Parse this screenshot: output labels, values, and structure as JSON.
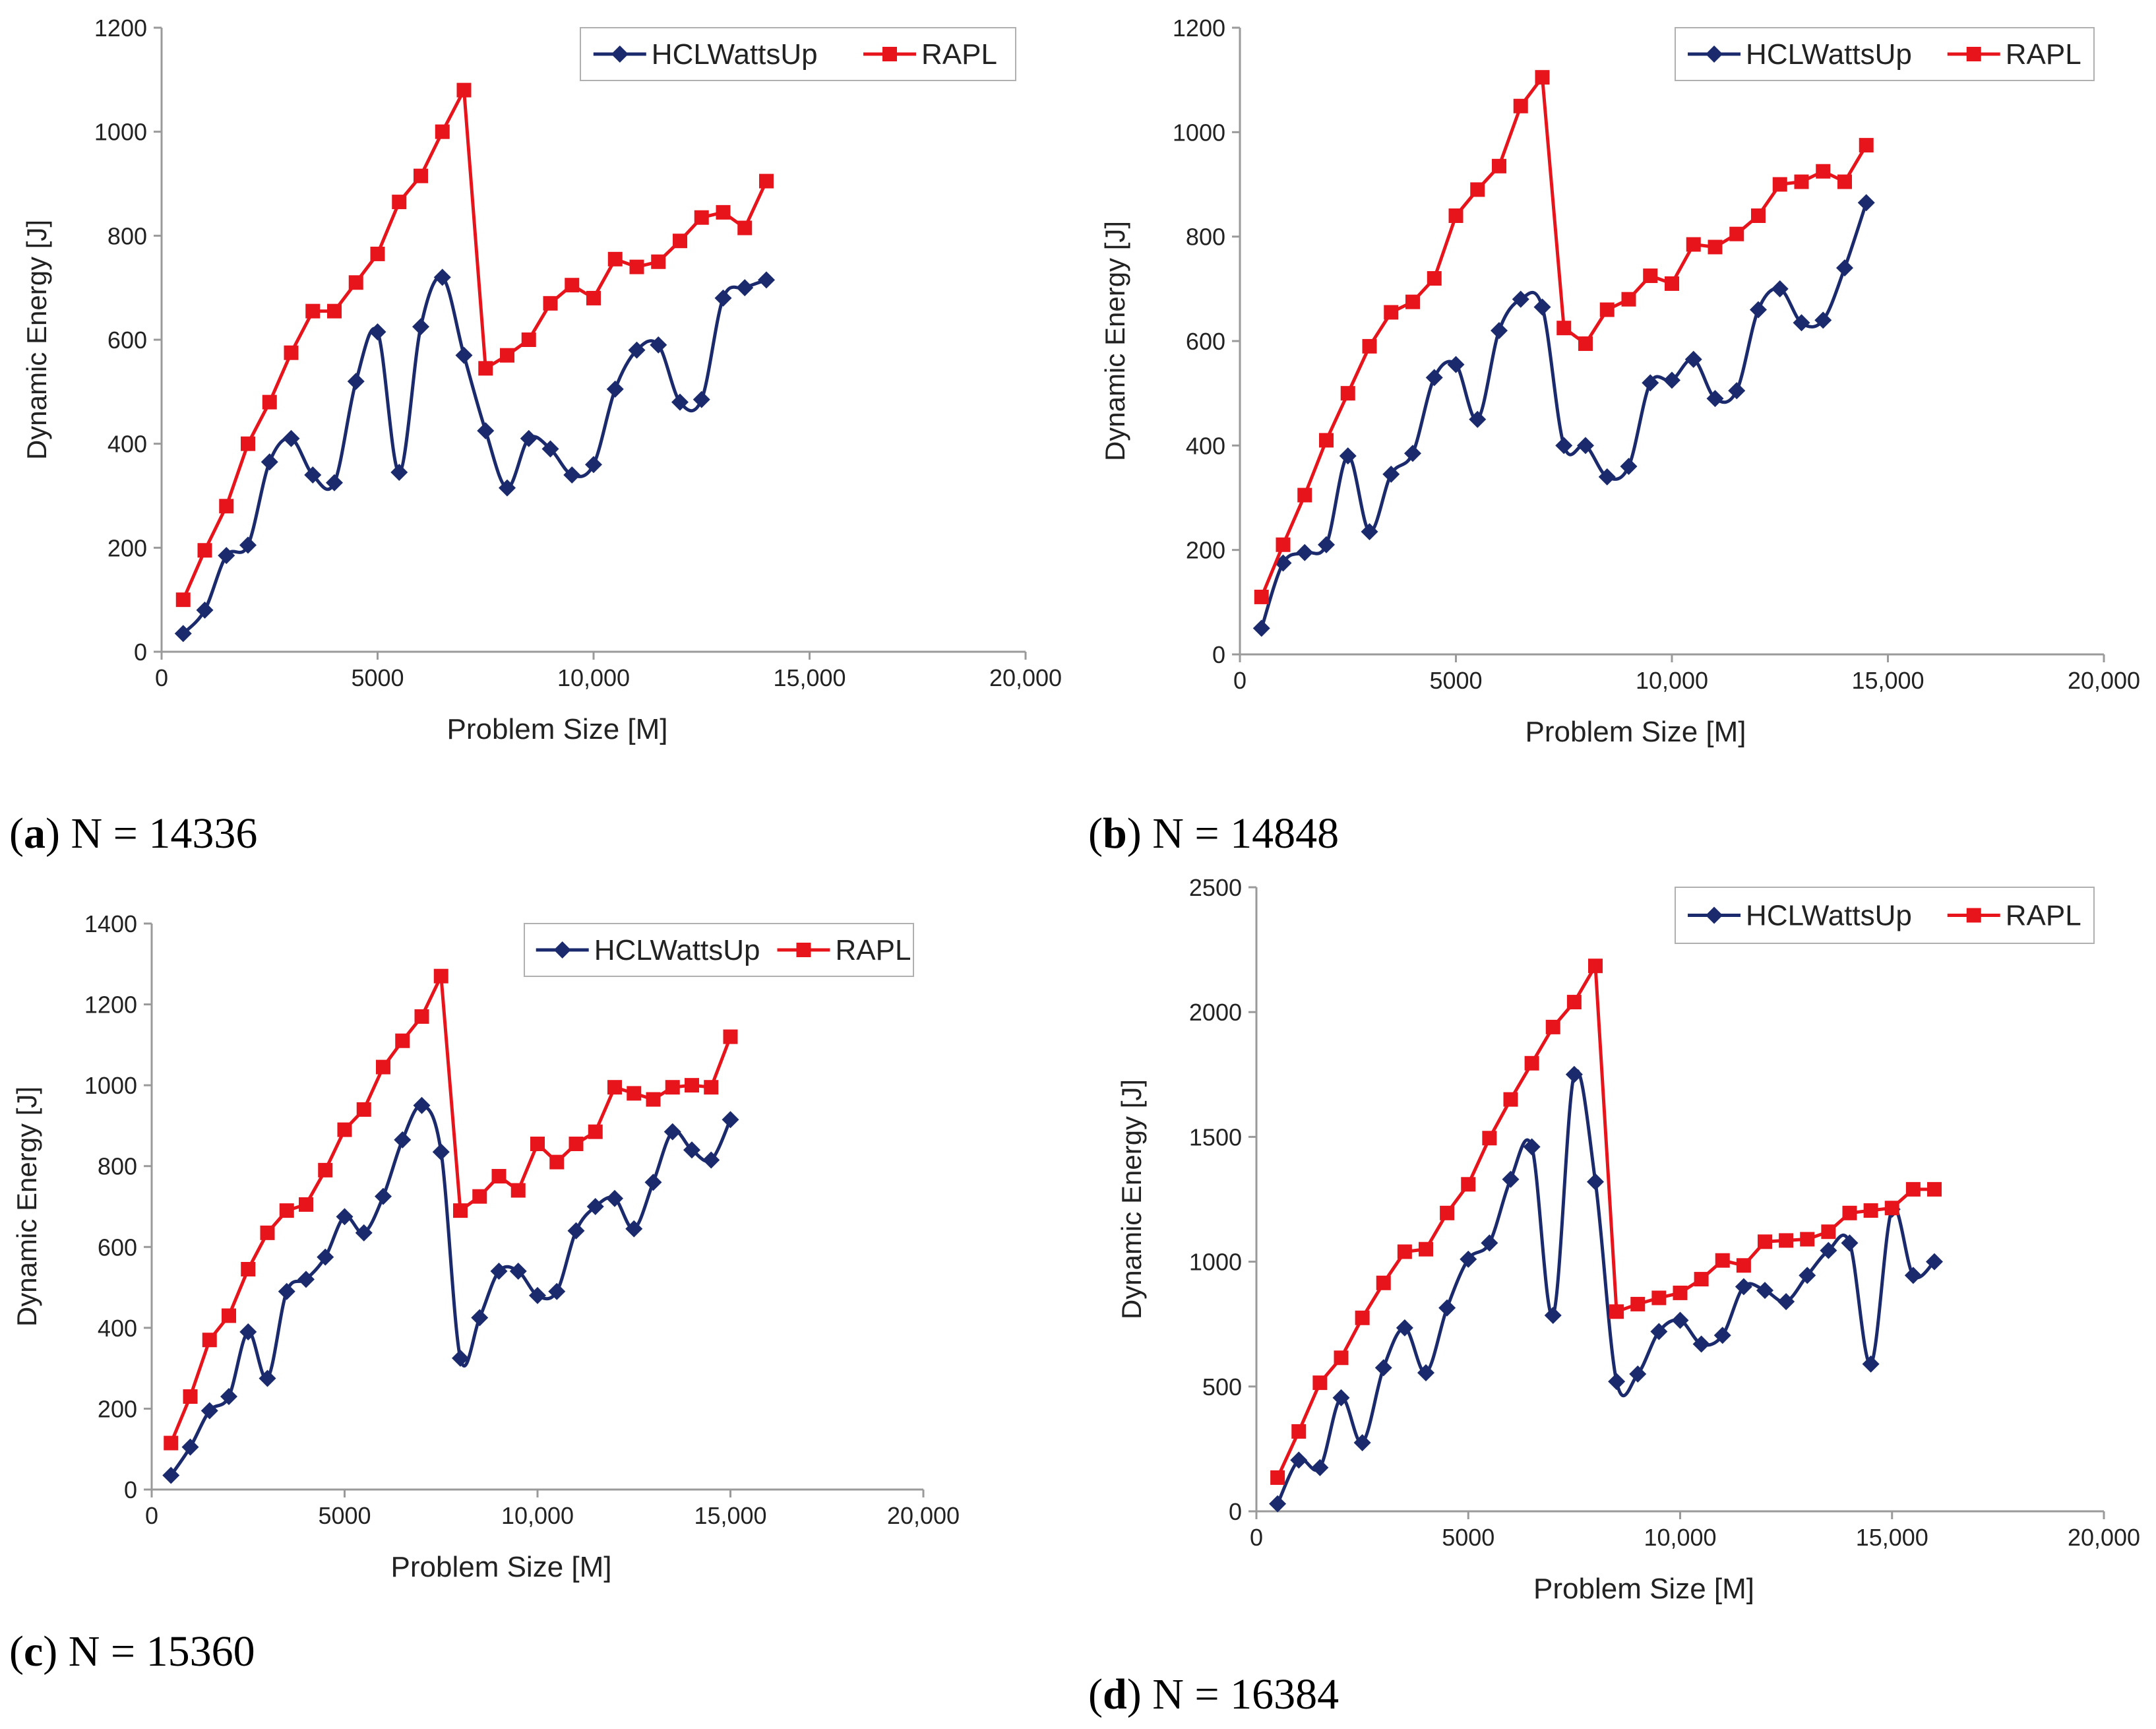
{
  "colors": {
    "hcl": "#1a2a6c",
    "rapl": "#e8141c",
    "axis": "#9a9a9a"
  },
  "legend_icons": {
    "hcl": "diamond-marker",
    "rapl": "square-marker"
  },
  "chart_data": [
    {
      "type": "line",
      "caption_letter": "a",
      "caption_text": " N = 14336",
      "xlabel": "Problem Size [M]",
      "ylabel": "Dynamic Energy [J]",
      "xlim": [
        0,
        20000
      ],
      "ylim": [
        0,
        1200
      ],
      "xticks": [
        0,
        5000,
        10000,
        15000,
        20000
      ],
      "xtick_labels": [
        "0",
        "5000",
        "10,000",
        "15,000",
        "20,000"
      ],
      "yticks": [
        0,
        200,
        400,
        600,
        800,
        1000,
        1200
      ],
      "ytick_labels": [
        "0",
        "200",
        "400",
        "600",
        "800",
        "1000",
        "1200"
      ],
      "legend": "top-right",
      "grid": false,
      "series": [
        {
          "name": "HCLWattsUp",
          "marker": "diamond",
          "smooth": true,
          "x": [
            500,
            1000,
            1500,
            2000,
            2500,
            3000,
            3500,
            4000,
            4500,
            5000,
            5500,
            6000,
            6500,
            7000,
            7500,
            8000,
            8500,
            9000,
            9500,
            10000,
            10500,
            11000,
            11500,
            12000,
            12500,
            13000,
            13500,
            14000
          ],
          "y": [
            35,
            80,
            185,
            205,
            365,
            410,
            340,
            325,
            520,
            615,
            345,
            625,
            720,
            570,
            425,
            315,
            410,
            390,
            340,
            360,
            505,
            580,
            590,
            480,
            485,
            680,
            700,
            715
          ]
        },
        {
          "name": "RAPL",
          "marker": "square",
          "smooth": false,
          "x": [
            500,
            1000,
            1500,
            2000,
            2500,
            3000,
            3500,
            4000,
            4500,
            5000,
            5500,
            6000,
            6500,
            7000,
            7500,
            8000,
            8500,
            9000,
            9500,
            10000,
            10500,
            11000,
            11500,
            12000,
            12500,
            13000,
            13500,
            14000
          ],
          "y": [
            100,
            195,
            280,
            400,
            480,
            575,
            655,
            655,
            710,
            765,
            865,
            915,
            1000,
            1080,
            545,
            570,
            600,
            670,
            705,
            680,
            755,
            740,
            750,
            790,
            835,
            845,
            815,
            905
          ]
        }
      ]
    },
    {
      "type": "line",
      "caption_letter": "b",
      "caption_text": " N = 14848",
      "xlabel": "Problem Size [M]",
      "ylabel": "Dynamic Energy [J]",
      "xlim": [
        0,
        20000
      ],
      "ylim": [
        0,
        1200
      ],
      "xticks": [
        0,
        5000,
        10000,
        15000,
        20000
      ],
      "xtick_labels": [
        "0",
        "5000",
        "10,000",
        "15,000",
        "20,000"
      ],
      "yticks": [
        0,
        200,
        400,
        600,
        800,
        1000,
        1200
      ],
      "ytick_labels": [
        "0",
        "200",
        "400",
        "600",
        "800",
        "1000",
        "1200"
      ],
      "legend": "top-right",
      "grid": false,
      "series": [
        {
          "name": "HCLWattsUp",
          "marker": "diamond",
          "smooth": true,
          "x": [
            500,
            1000,
            1500,
            2000,
            2500,
            3000,
            3500,
            4000,
            4500,
            5000,
            5500,
            6000,
            6500,
            7000,
            7500,
            8000,
            8500,
            9000,
            9500,
            10000,
            10500,
            11000,
            11500,
            12000,
            12500,
            13000,
            13500,
            14000,
            14500
          ],
          "y": [
            50,
            175,
            195,
            210,
            380,
            235,
            345,
            385,
            530,
            555,
            450,
            620,
            680,
            665,
            400,
            400,
            340,
            360,
            520,
            525,
            565,
            490,
            505,
            660,
            700,
            635,
            640,
            740,
            865
          ]
        },
        {
          "name": "RAPL",
          "marker": "square",
          "smooth": false,
          "x": [
            500,
            1000,
            1500,
            2000,
            2500,
            3000,
            3500,
            4000,
            4500,
            5000,
            5500,
            6000,
            6500,
            7000,
            7500,
            8000,
            8500,
            9000,
            9500,
            10000,
            10500,
            11000,
            11500,
            12000,
            12500,
            13000,
            13500,
            14000,
            14500
          ],
          "y": [
            110,
            210,
            305,
            410,
            500,
            590,
            655,
            675,
            720,
            840,
            890,
            935,
            1050,
            1105,
            625,
            595,
            660,
            680,
            725,
            710,
            785,
            780,
            805,
            840,
            900,
            905,
            925,
            905,
            975
          ]
        }
      ]
    },
    {
      "type": "line",
      "caption_letter": "c",
      "caption_text": " N = 15360",
      "xlabel": "Problem Size [M]",
      "ylabel": "Dynamic Energy [J]",
      "xlim": [
        0,
        20000
      ],
      "ylim": [
        0,
        1400
      ],
      "xticks": [
        0,
        5000,
        10000,
        15000,
        20000
      ],
      "xtick_labels": [
        "0",
        "5000",
        "10,000",
        "15,000",
        "20,000"
      ],
      "yticks": [
        0,
        200,
        400,
        600,
        800,
        1000,
        1200,
        1400
      ],
      "ytick_labels": [
        "0",
        "200",
        "400",
        "600",
        "800",
        "1000",
        "1200",
        "1400"
      ],
      "legend": "top-right",
      "grid": false,
      "series": [
        {
          "name": "HCLWattsUp",
          "marker": "diamond",
          "smooth": true,
          "x": [
            500,
            1000,
            1500,
            2000,
            2500,
            3000,
            3500,
            4000,
            4500,
            5000,
            5500,
            6000,
            6500,
            7000,
            7500,
            8000,
            8500,
            9000,
            9500,
            10000,
            10500,
            11000,
            11500,
            12000,
            12500,
            13000,
            13500,
            14000,
            14500,
            15000
          ],
          "y": [
            35,
            105,
            195,
            230,
            390,
            275,
            490,
            520,
            575,
            675,
            635,
            725,
            865,
            950,
            835,
            325,
            425,
            540,
            540,
            480,
            490,
            640,
            700,
            720,
            645,
            760,
            885,
            840,
            815,
            915
          ]
        },
        {
          "name": "RAPL",
          "marker": "square",
          "smooth": false,
          "x": [
            500,
            1000,
            1500,
            2000,
            2500,
            3000,
            3500,
            4000,
            4500,
            5000,
            5500,
            6000,
            6500,
            7000,
            7500,
            8000,
            8500,
            9000,
            9500,
            10000,
            10500,
            11000,
            11500,
            12000,
            12500,
            13000,
            13500,
            14000,
            14500,
            15000
          ],
          "y": [
            115,
            230,
            370,
            430,
            545,
            635,
            690,
            705,
            790,
            890,
            940,
            1045,
            1110,
            1170,
            1270,
            690,
            725,
            775,
            740,
            855,
            810,
            855,
            885,
            995,
            980,
            965,
            995,
            1000,
            995,
            1120
          ]
        }
      ]
    },
    {
      "type": "line",
      "caption_letter": "d",
      "caption_text": " N = 16384",
      "xlabel": "Problem Size [M]",
      "ylabel": "Dynamic Energy [J]",
      "xlim": [
        0,
        20000
      ],
      "ylim": [
        0,
        2500
      ],
      "xticks": [
        0,
        5000,
        10000,
        15000,
        20000
      ],
      "xtick_labels": [
        "0",
        "5000",
        "10,000",
        "15,000",
        "20,000"
      ],
      "yticks": [
        0,
        500,
        1000,
        1500,
        2000,
        2500
      ],
      "ytick_labels": [
        "0",
        "500",
        "1000",
        "1500",
        "2000",
        "2500"
      ],
      "legend": "top-right",
      "grid": false,
      "series": [
        {
          "name": "HCLWattsUp",
          "marker": "diamond",
          "smooth": true,
          "x": [
            500,
            1000,
            1500,
            2000,
            2500,
            3000,
            3500,
            4000,
            4500,
            5000,
            5500,
            6000,
            6500,
            7000,
            7500,
            8000,
            8500,
            9000,
            9500,
            10000,
            10500,
            11000,
            11500,
            12000,
            12500,
            13000,
            13500,
            14000,
            14500,
            15000,
            15500,
            16000
          ],
          "y": [
            30,
            205,
            175,
            455,
            275,
            575,
            735,
            555,
            815,
            1010,
            1075,
            1330,
            1460,
            785,
            1750,
            1320,
            520,
            550,
            720,
            765,
            670,
            705,
            900,
            885,
            840,
            945,
            1045,
            1075,
            590,
            1210,
            945,
            1000
          ]
        },
        {
          "name": "RAPL",
          "marker": "square",
          "smooth": false,
          "x": [
            500,
            1000,
            1500,
            2000,
            2500,
            3000,
            3500,
            4000,
            4500,
            5000,
            5500,
            6000,
            6500,
            7000,
            7500,
            8000,
            8500,
            9000,
            9500,
            10000,
            10500,
            11000,
            11500,
            12000,
            12500,
            13000,
            13500,
            14000,
            14500,
            15000,
            15500,
            16000
          ],
          "y": [
            135,
            320,
            515,
            615,
            775,
            915,
            1040,
            1050,
            1195,
            1310,
            1495,
            1650,
            1795,
            1940,
            2040,
            2185,
            800,
            830,
            855,
            875,
            930,
            1005,
            985,
            1080,
            1085,
            1090,
            1120,
            1195,
            1205,
            1215,
            1290,
            1290
          ]
        }
      ]
    }
  ]
}
